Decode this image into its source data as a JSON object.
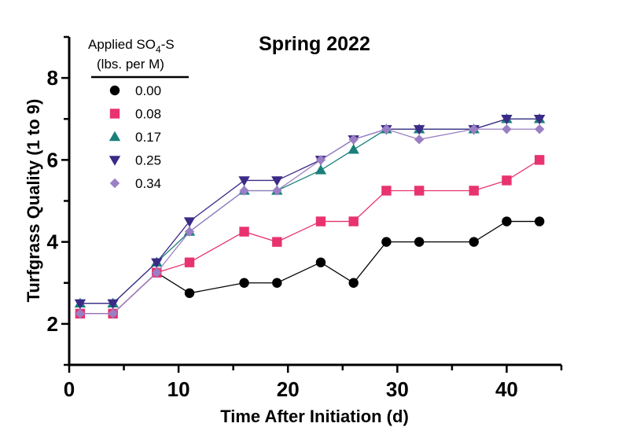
{
  "chart_data": {
    "type": "line",
    "title": "Spring 2022",
    "xlabel": "Time After Initiation (d)",
    "ylabel": "Turfgrass Quality (1 to 9)",
    "xlim": [
      0,
      45
    ],
    "ylim": [
      1,
      9
    ],
    "xticks": [
      0,
      10,
      20,
      30,
      40
    ],
    "yticks": [
      2,
      4,
      6,
      8
    ],
    "grid": false,
    "legend": {
      "title_line1": "Applied SO",
      "title_sub": "4",
      "title_line1_suffix": "-S",
      "title_line2": "(lbs. per M)",
      "placement": "top-left"
    },
    "x": [
      1,
      4,
      8,
      11,
      16,
      19,
      23,
      26,
      29,
      32,
      37,
      40,
      43
    ],
    "series": [
      {
        "name": "0.00",
        "color": "#000000",
        "marker": "circle",
        "values": [
          2.25,
          2.25,
          3.25,
          2.75,
          3.0,
          3.0,
          3.5,
          3.0,
          4.0,
          4.0,
          4.0,
          4.5,
          4.5
        ]
      },
      {
        "name": "0.08",
        "color": "#e8336e",
        "marker": "square",
        "values": [
          2.25,
          2.25,
          3.25,
          3.5,
          4.25,
          4.0,
          4.5,
          4.5,
          5.25,
          5.25,
          5.25,
          5.5,
          6.0
        ]
      },
      {
        "name": "0.17",
        "color": "#1a7f7a",
        "marker": "triangle-up",
        "values": [
          2.5,
          2.5,
          3.5,
          4.25,
          5.25,
          5.25,
          5.75,
          6.25,
          6.75,
          6.75,
          6.75,
          7.0,
          7.0
        ]
      },
      {
        "name": "0.25",
        "color": "#3b2a86",
        "marker": "triangle-down",
        "values": [
          2.5,
          2.5,
          3.5,
          4.5,
          5.5,
          5.5,
          6.0,
          6.5,
          6.75,
          6.75,
          6.75,
          7.0,
          7.0
        ]
      },
      {
        "name": "0.34",
        "color": "#9b7fc4",
        "marker": "diamond",
        "values": [
          2.25,
          2.25,
          3.25,
          4.25,
          5.25,
          5.25,
          6.0,
          6.5,
          6.75,
          6.5,
          6.75,
          6.75,
          6.75
        ]
      }
    ]
  }
}
